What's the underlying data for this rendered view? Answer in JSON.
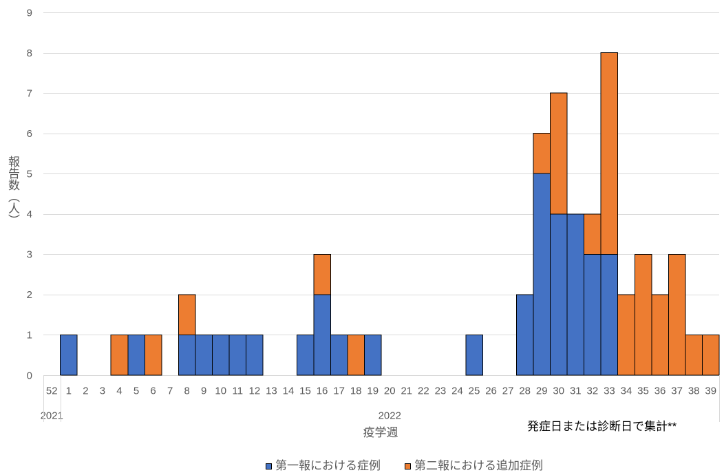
{
  "chart_data": {
    "type": "bar",
    "stacked": true,
    "categories": [
      "52",
      "1",
      "2",
      "3",
      "4",
      "5",
      "6",
      "7",
      "8",
      "9",
      "10",
      "11",
      "12",
      "13",
      "14",
      "15",
      "16",
      "17",
      "18",
      "19",
      "20",
      "21",
      "22",
      "23",
      "24",
      "25",
      "26",
      "27",
      "28",
      "29",
      "30",
      "31",
      "32",
      "33",
      "34",
      "35",
      "36",
      "37",
      "38",
      "39"
    ],
    "category_groups": [
      {
        "label": "2021",
        "span": 1
      },
      {
        "label": "2022",
        "span": 39
      }
    ],
    "series": [
      {
        "name": "第一報における症例",
        "color": "#4472C4",
        "values": [
          0,
          1,
          0,
          0,
          0,
          1,
          0,
          0,
          1,
          1,
          1,
          1,
          1,
          0,
          0,
          1,
          2,
          1,
          0,
          1,
          0,
          0,
          0,
          0,
          0,
          1,
          0,
          0,
          2,
          5,
          4,
          4,
          3,
          3,
          0,
          0,
          0,
          0,
          0,
          0
        ]
      },
      {
        "name": "第二報における追加症例",
        "color": "#ED7D31",
        "values": [
          0,
          0,
          0,
          0,
          1,
          0,
          1,
          0,
          1,
          0,
          0,
          0,
          0,
          0,
          0,
          0,
          1,
          0,
          1,
          0,
          0,
          0,
          0,
          0,
          0,
          0,
          0,
          0,
          0,
          1,
          3,
          0,
          1,
          5,
          2,
          3,
          2,
          3,
          1,
          1
        ]
      }
    ],
    "xlabel": "疫学週",
    "ylabel": "報告数（人）",
    "ylim": [
      0,
      9
    ],
    "yticks": [
      0,
      1,
      2,
      3,
      4,
      5,
      6,
      7,
      8,
      9
    ],
    "grid": true,
    "legend": "bottom",
    "annotation": "発症日または診断日で集計**"
  }
}
